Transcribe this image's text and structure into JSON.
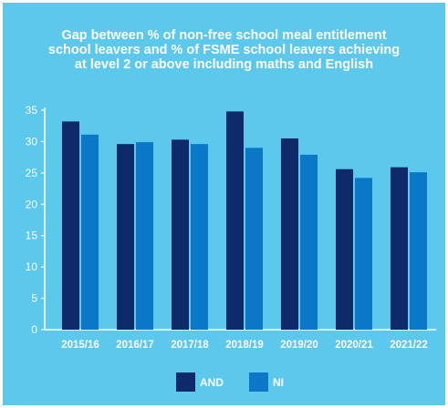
{
  "background_color": "#5BC8EC",
  "title_lines": [
    "Gap between % of non-free school meal entitlement",
    "school leavers and % of FSME school leavers achieving",
    "at level 2 or above including maths and English"
  ],
  "chart_data": {
    "type": "bar",
    "title": "Gap between % of non-free school meal entitlement school leavers and % of FSME school leavers achieving at level 2 or above including maths and English",
    "categories": [
      "2015/16",
      "2016/17",
      "2017/18",
      "2018/19",
      "2019/20",
      "2020/21",
      "2021/22"
    ],
    "series": [
      {
        "name": "AND",
        "color": "#0F2A6B",
        "values": [
          33.2,
          29.6,
          30.3,
          34.8,
          30.5,
          25.6,
          25.9
        ]
      },
      {
        "name": "NI",
        "color": "#0A78C7",
        "values": [
          31.1,
          29.9,
          29.6,
          29.0,
          27.9,
          24.2,
          25.1
        ]
      }
    ],
    "ylim": [
      0,
      35
    ],
    "yticks": [
      0,
      5,
      10,
      15,
      20,
      25,
      30,
      35
    ],
    "xlabel": "",
    "ylabel": "",
    "grid": false,
    "legend_position": "bottom-center"
  }
}
